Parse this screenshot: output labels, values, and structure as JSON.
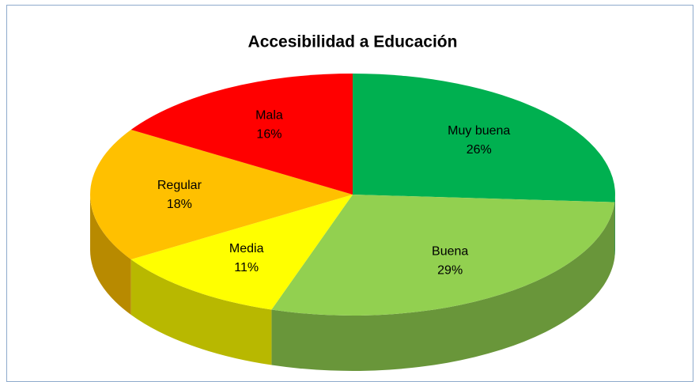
{
  "chart_data": {
    "type": "pie3d",
    "title": "Accesibilidad a Educación",
    "categories": [
      "Muy buena",
      "Buena",
      "Media",
      "Regular",
      "Mala"
    ],
    "values": [
      26,
      29,
      11,
      18,
      16
    ],
    "value_labels": [
      "26%",
      "29%",
      "11%",
      "18%",
      "16%"
    ],
    "colors": [
      "#00b050",
      "#92d050",
      "#ffff00",
      "#ffc000",
      "#ff0000"
    ]
  }
}
